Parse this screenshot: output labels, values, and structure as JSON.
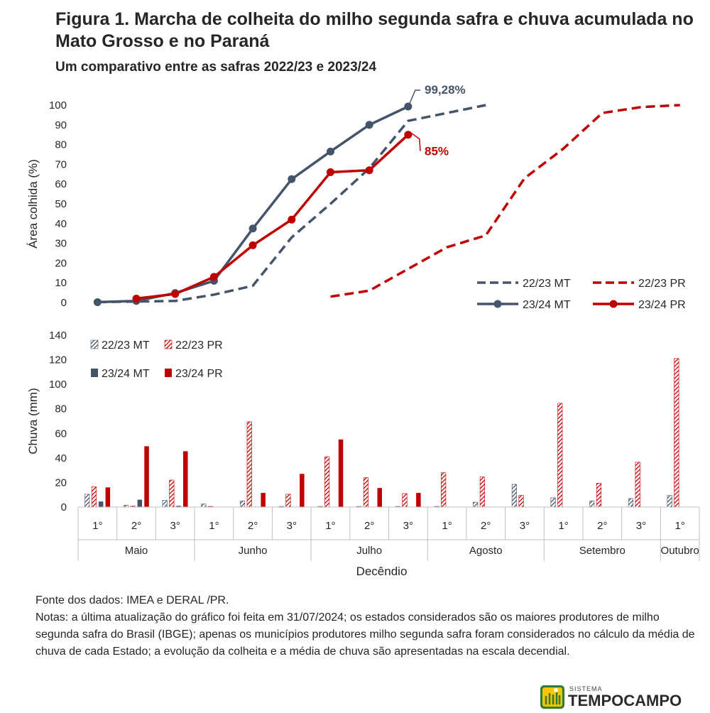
{
  "title": "Figura 1. Marcha de colheita do milho segunda safra e chuva acumulada no Mato Grosso e no Paraná",
  "subtitle": "Um comparativo entre as safras 2022/23 e 2023/24",
  "colors": {
    "mt": "#44546a",
    "pr": "#c00000",
    "axis": "#bfbfbf",
    "text": "#262626"
  },
  "chart_data": [
    {
      "type": "line",
      "ylabel": "Área colhida (%)",
      "ylim": [
        0,
        100
      ],
      "yticks": [
        0,
        10,
        20,
        30,
        40,
        50,
        60,
        70,
        80,
        90,
        100
      ],
      "x_categories": [
        "Maio 1°",
        "Maio 2°",
        "Maio 3°",
        "Junho 1°",
        "Junho 2°",
        "Junho 3°",
        "Julho 1°",
        "Julho 2°",
        "Julho 3°",
        "Agosto 1°",
        "Agosto 2°",
        "Agosto 3°",
        "Setembro 1°",
        "Setembro 2°",
        "Setembro 3°",
        "Outubro 1°"
      ],
      "series": [
        {
          "name": "22/23 MT",
          "style": "dashed",
          "color": "#44546a",
          "values": [
            0.2,
            0.5,
            0.8,
            4,
            8.5,
            33,
            50,
            68,
            92,
            96,
            100,
            null,
            null,
            null,
            null,
            null
          ]
        },
        {
          "name": "22/23 PR",
          "style": "dashed",
          "color": "#c00000",
          "values": [
            null,
            null,
            null,
            null,
            null,
            null,
            3,
            6,
            17,
            28,
            34,
            63,
            78,
            96,
            99,
            100
          ]
        },
        {
          "name": "23/24 MT",
          "style": "solid",
          "marker": "circle",
          "color": "#44546a",
          "values": [
            0.2,
            0.8,
            4.8,
            11,
            37.5,
            62.5,
            76.5,
            90,
            99.28,
            null,
            null,
            null,
            null,
            null,
            null,
            null
          ]
        },
        {
          "name": "23/24 PR",
          "style": "solid",
          "marker": "circle",
          "color": "#c00000",
          "values": [
            null,
            2,
            4.3,
            13,
            29,
            42,
            66,
            67,
            85,
            null,
            null,
            null,
            null,
            null,
            null,
            null
          ]
        }
      ],
      "annotations": [
        {
          "text": "99,28%",
          "series": "23/24 MT",
          "index": 8
        },
        {
          "text": "85%",
          "series": "23/24 PR",
          "index": 8
        }
      ],
      "legend": "bottom-right"
    },
    {
      "type": "bar",
      "ylabel": "Chuva (mm)",
      "xlabel": "Decêndio",
      "ylim": [
        0,
        140
      ],
      "yticks": [
        0,
        20,
        40,
        60,
        80,
        100,
        120,
        140
      ],
      "categories": [
        "1°",
        "2°",
        "3°",
        "1°",
        "2°",
        "3°",
        "1°",
        "2°",
        "3°",
        "1°",
        "2°",
        "3°",
        "1°",
        "2°",
        "3°",
        "1°"
      ],
      "groups": [
        {
          "label": "Maio",
          "span": 3
        },
        {
          "label": "Junho",
          "span": 3
        },
        {
          "label": "Julho",
          "span": 3
        },
        {
          "label": "Agosto",
          "span": 3
        },
        {
          "label": "Setembro",
          "span": 3
        },
        {
          "label": "Outubro",
          "span": 1
        }
      ],
      "series": [
        {
          "name": "22/23 MT",
          "pattern": "hatched",
          "color": "#44546a",
          "values": [
            10.5,
            1.5,
            5.5,
            2.5,
            5,
            0.5,
            0.5,
            0.5,
            0.5,
            0.5,
            4,
            18.5,
            7.5,
            5,
            7,
            9.5
          ]
        },
        {
          "name": "22/23 PR",
          "pattern": "hatched",
          "color": "#c00000",
          "values": [
            16.5,
            0.8,
            22,
            0.5,
            69.5,
            10.5,
            41,
            24,
            11,
            28,
            24.5,
            9.5,
            84.5,
            19.5,
            36.5,
            121
          ]
        },
        {
          "name": "23/24 MT",
          "pattern": "solid",
          "color": "#44546a",
          "values": [
            4.5,
            6,
            1,
            0,
            0,
            0,
            0,
            0,
            0,
            0,
            0,
            0,
            0,
            0,
            0,
            0
          ]
        },
        {
          "name": "23/24 PR",
          "pattern": "solid",
          "color": "#c00000",
          "values": [
            16,
            49.5,
            45.5,
            0,
            11.5,
            27,
            55,
            15.5,
            11.5,
            0,
            0,
            0,
            0,
            0,
            0,
            0
          ]
        }
      ],
      "legend": "top-left"
    }
  ],
  "notes": {
    "source": "Fonte dos dados: IMEA e DERAL /PR.",
    "text": "Notas: a última atualização do gráfico foi feita em 31/07/2024; os estados considerados são os maiores produtores de milho segunda safra do Brasil (IBGE); apenas os municípios produtores milho segunda safra foram considerados no cálculo da média de chuva de cada Estado; a evolução da colheita e a média de chuva são apresentadas na escala decendial."
  },
  "logo": {
    "small": "SISTEMA",
    "main": "TEMPOCAMPO"
  }
}
